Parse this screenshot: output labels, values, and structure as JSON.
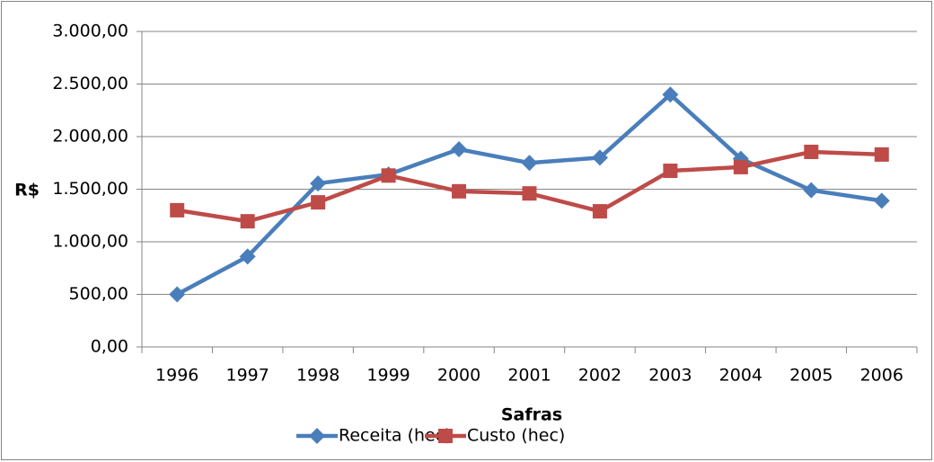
{
  "chart_data": {
    "type": "line",
    "y_label": "R$",
    "x_label": "Safras",
    "categories": [
      "1996",
      "1997",
      "1998",
      "1999",
      "2000",
      "2001",
      "2002",
      "2003",
      "2004",
      "2005",
      "2006"
    ],
    "series": [
      {
        "name": "Receita (hec)",
        "color": "#4a7ebb",
        "marker": "diamond",
        "values": [
          500,
          860,
          1555,
          1640,
          1880,
          1750,
          1800,
          2400,
          1790,
          1490,
          1390
        ]
      },
      {
        "name": "Custo (hec)",
        "color": "#be4b48",
        "marker": "square",
        "values": [
          1300,
          1195,
          1375,
          1630,
          1480,
          1460,
          1290,
          1675,
          1710,
          1855,
          1830
        ]
      }
    ],
    "ylim": [
      0,
      3000
    ],
    "yticks": [
      {
        "value": 0,
        "label": "0,00"
      },
      {
        "value": 500,
        "label": "500,00"
      },
      {
        "value": 1000,
        "label": "1.000,00"
      },
      {
        "value": 1500,
        "label": "1.500,00"
      },
      {
        "value": 2000,
        "label": "2.000,00"
      },
      {
        "value": 2500,
        "label": "2.500,00"
      },
      {
        "value": 3000,
        "label": "3.000,00"
      }
    ],
    "grid": true,
    "legend": "bottom"
  }
}
